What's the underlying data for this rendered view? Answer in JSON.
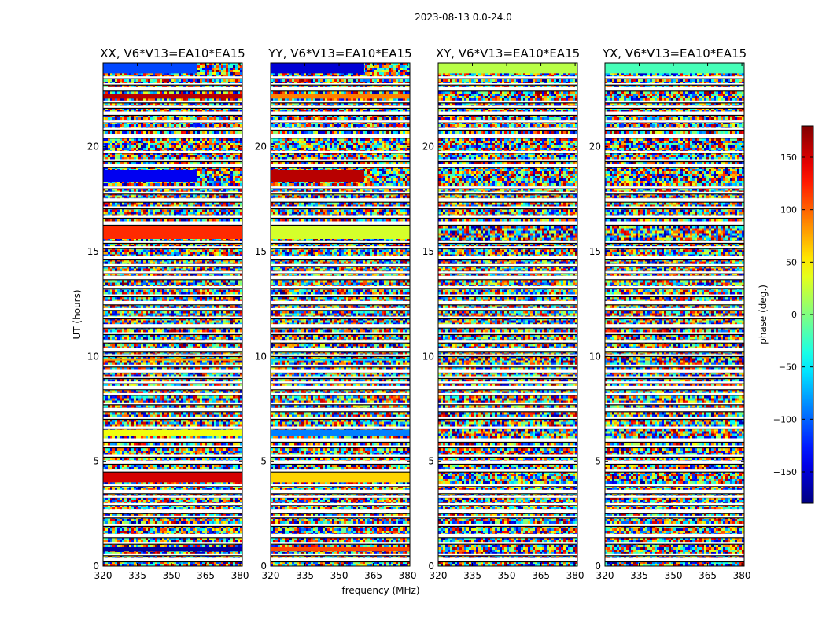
{
  "chart_data": {
    "type": "heatmap",
    "suptitle": "2023-08-13 0.0-24.0",
    "xlabel": "frequency (MHz)",
    "ylabel": "UT (hours)",
    "xlim": [
      320,
      381
    ],
    "ylim": [
      0,
      24
    ],
    "xticks": [
      320,
      335,
      350,
      365,
      380
    ],
    "yticks": [
      0,
      5,
      10,
      15,
      20
    ],
    "panels": [
      {
        "title": "XX, V6*V13=EA10*EA15",
        "structured_bands": [
          {
            "t0": 23.5,
            "t1": 24.0,
            "phase": -110,
            "until_freq": 361
          },
          {
            "t0": 22.3,
            "t1": 22.5,
            "phase": 160
          },
          {
            "t0": 18.3,
            "t1": 18.9,
            "phase": -140,
            "until_freq": 361
          },
          {
            "t0": 15.6,
            "t1": 16.2,
            "phase": 120
          },
          {
            "t0": 9.8,
            "t1": 9.9,
            "phase": 80
          },
          {
            "t0": 6.2,
            "t1": 6.5,
            "phase": 40
          },
          {
            "t0": 4.0,
            "t1": 4.5,
            "phase": 150
          },
          {
            "t0": 0.7,
            "t1": 0.9,
            "phase": -170
          }
        ]
      },
      {
        "title": "YY, V6*V13=EA10*EA15",
        "structured_bands": [
          {
            "t0": 23.5,
            "t1": 24.0,
            "phase": -150,
            "until_freq": 361
          },
          {
            "t0": 22.3,
            "t1": 22.5,
            "phase": 90
          },
          {
            "t0": 18.3,
            "t1": 18.9,
            "phase": 160,
            "until_freq": 361
          },
          {
            "t0": 15.6,
            "t1": 16.2,
            "phase": 30
          },
          {
            "t0": 9.8,
            "t1": 9.9,
            "phase": -60
          },
          {
            "t0": 6.2,
            "t1": 6.5,
            "phase": -90
          },
          {
            "t0": 4.0,
            "t1": 4.5,
            "phase": 60
          },
          {
            "t0": 0.7,
            "t1": 0.9,
            "phase": 110
          }
        ]
      },
      {
        "title": "XY, V6*V13=EA10*EA15",
        "structured_bands": [
          {
            "t0": 23.5,
            "t1": 24.0,
            "phase": 20
          }
        ]
      },
      {
        "title": "YX, V6*V13=EA10*EA15",
        "structured_bands": [
          {
            "t0": 23.5,
            "t1": 24.0,
            "phase": -20
          }
        ]
      }
    ],
    "flagged_rows_hours": [
      0.3,
      0.55,
      1.1,
      1.45,
      1.95,
      2.35,
      2.6,
      2.95,
      3.3,
      3.55,
      3.85,
      4.55,
      4.95,
      5.25,
      5.7,
      6.0,
      6.6,
      7.05,
      7.45,
      7.75,
      8.2,
      8.5,
      8.75,
      9.0,
      9.3,
      9.55,
      10.05,
      10.3,
      10.7,
      11.1,
      11.45,
      11.85,
      12.25,
      12.55,
      12.9,
      13.3,
      13.75,
      14.0,
      14.35,
      14.7,
      15.2,
      15.45,
      16.35,
      16.65,
      17.1,
      17.45,
      17.8,
      18.05,
      19.1,
      19.35,
      19.75,
      20.5,
      20.85,
      21.2,
      21.6,
      21.9,
      22.15,
      22.75,
      23.0,
      23.3
    ],
    "colorbar": {
      "label": "phase (deg.)",
      "vmin": -180,
      "vmax": 180,
      "ticks": [
        -150,
        -100,
        -50,
        0,
        50,
        100,
        150
      ],
      "tick_labels": [
        "−150",
        "−100",
        "−50",
        "0",
        "50",
        "100",
        "150"
      ],
      "colormap": "jet"
    }
  }
}
